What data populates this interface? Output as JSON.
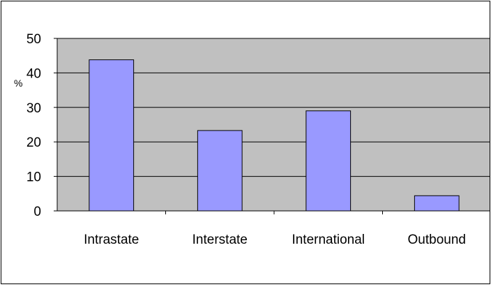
{
  "chart_data": {
    "type": "bar",
    "categories": [
      "Intrastate",
      "Interstate",
      "International",
      "Outbound"
    ],
    "values": [
      43.8,
      23.3,
      29.0,
      4.4
    ],
    "ylabel": "%",
    "ylim": [
      0,
      50
    ],
    "yticks": [
      0,
      10,
      20,
      30,
      40,
      50
    ],
    "grid": true,
    "colors": {
      "bar": "#9999ff",
      "plot_background": "#c0c0c0",
      "gridline": "#000000"
    }
  }
}
